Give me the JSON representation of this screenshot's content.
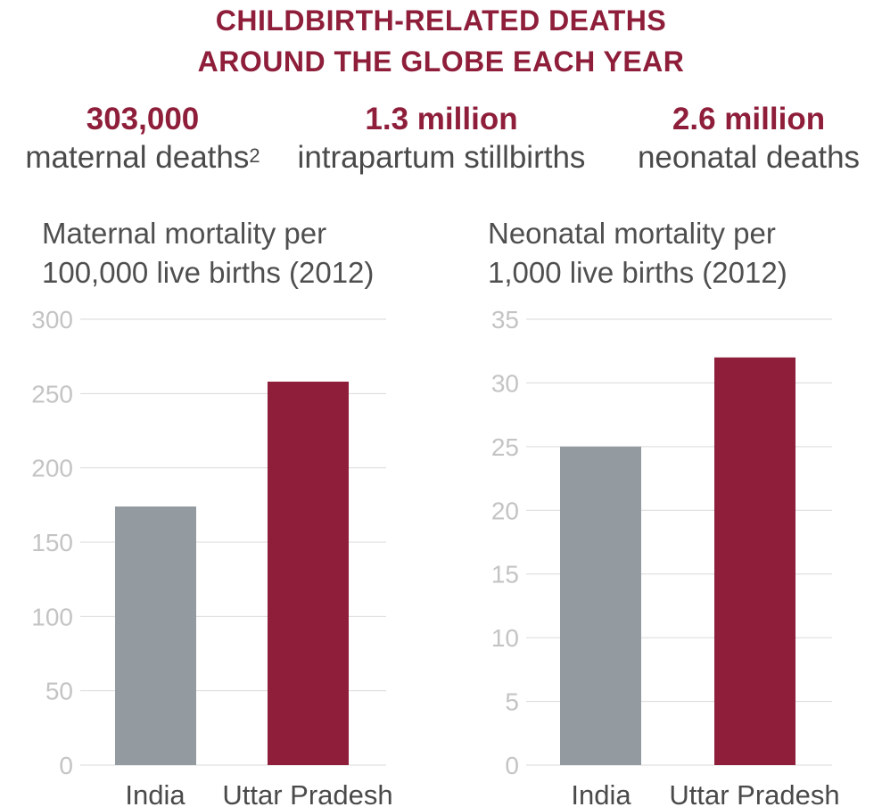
{
  "header": {
    "title_line1": "CHILDBIRTH-RELATED DEATHS",
    "title_line2": "AROUND THE GLOBE EACH YEAR"
  },
  "stats": [
    {
      "number": "303,000",
      "label": "maternal deaths",
      "superscript": "2"
    },
    {
      "number": "1.3 million",
      "label": "intrapartum stillbirths"
    },
    {
      "number": "2.6 million",
      "label": "neonatal deaths"
    }
  ],
  "colors": {
    "accent": "#8e1e3a",
    "india_bar": "#939ba1",
    "up_bar": "#8e1e3a",
    "gridline": "#d9d9d9",
    "tick_text": "#c4c4c4"
  },
  "chart_data": [
    {
      "type": "bar",
      "title_line1": "Maternal mortality per",
      "title_line2": "100,000 live births (2012)",
      "categories": [
        "India",
        "Uttar Pradesh"
      ],
      "values": [
        174,
        258
      ],
      "ylim": [
        0,
        300
      ],
      "yticks": [
        "0",
        "50",
        "100",
        "150",
        "200",
        "250",
        "300"
      ],
      "grid": true
    },
    {
      "type": "bar",
      "title_line1": "Neonatal mortality per",
      "title_line2": "1,000 live births (2012)",
      "categories": [
        "India",
        "Uttar Pradesh"
      ],
      "values": [
        25,
        32
      ],
      "ylim": [
        0,
        35
      ],
      "yticks": [
        "0",
        "5",
        "10",
        "15",
        "20",
        "25",
        "30",
        "35"
      ],
      "grid": true
    }
  ]
}
